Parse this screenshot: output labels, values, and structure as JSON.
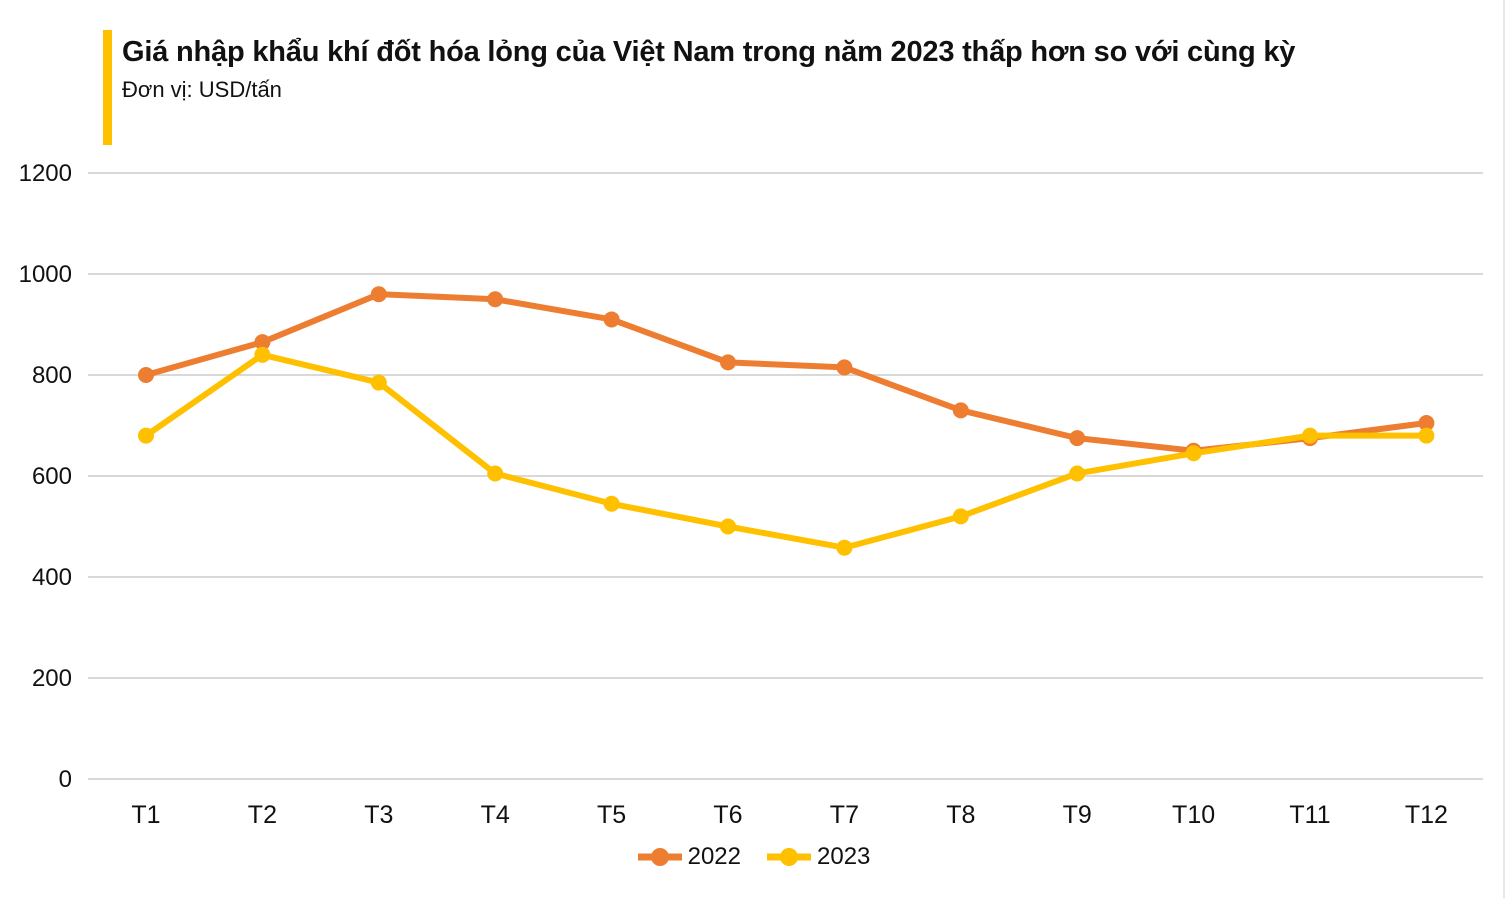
{
  "header": {
    "title": "Giá nhập khẩu khí đốt hóa lỏng của Việt Nam trong năm 2023 thấp hơn so với cùng kỳ",
    "subtitle": "Đơn vị: USD/tấn"
  },
  "colors": {
    "accent_bar": "#FFC000",
    "series_2022": "#ED7D31",
    "series_2023": "#FFC000",
    "gridline": "#D9D9D9",
    "text": "#111111",
    "background": "#FFFFFF"
  },
  "chart_data": {
    "type": "line",
    "title": "Giá nhập khẩu khí đốt hóa lỏng của Việt Nam trong năm 2023 thấp hơn so với cùng kỳ",
    "unit_label": "Đơn vị: USD/tấn",
    "categories": [
      "T1",
      "T2",
      "T3",
      "T4",
      "T5",
      "T6",
      "T7",
      "T8",
      "T9",
      "T10",
      "T11",
      "T12"
    ],
    "series": [
      {
        "name": "2022",
        "color": "#ED7D31",
        "values": [
          800,
          865,
          960,
          950,
          910,
          825,
          815,
          730,
          675,
          650,
          675,
          705
        ]
      },
      {
        "name": "2023",
        "color": "#FFC000",
        "values": [
          680,
          840,
          785,
          605,
          545,
          500,
          458,
          520,
          605,
          645,
          680,
          680
        ]
      }
    ],
    "xlabel": "",
    "ylabel": "",
    "ylim": [
      0,
      1200
    ],
    "ytick_step": 200,
    "grid": true,
    "legend_position": "bottom"
  }
}
